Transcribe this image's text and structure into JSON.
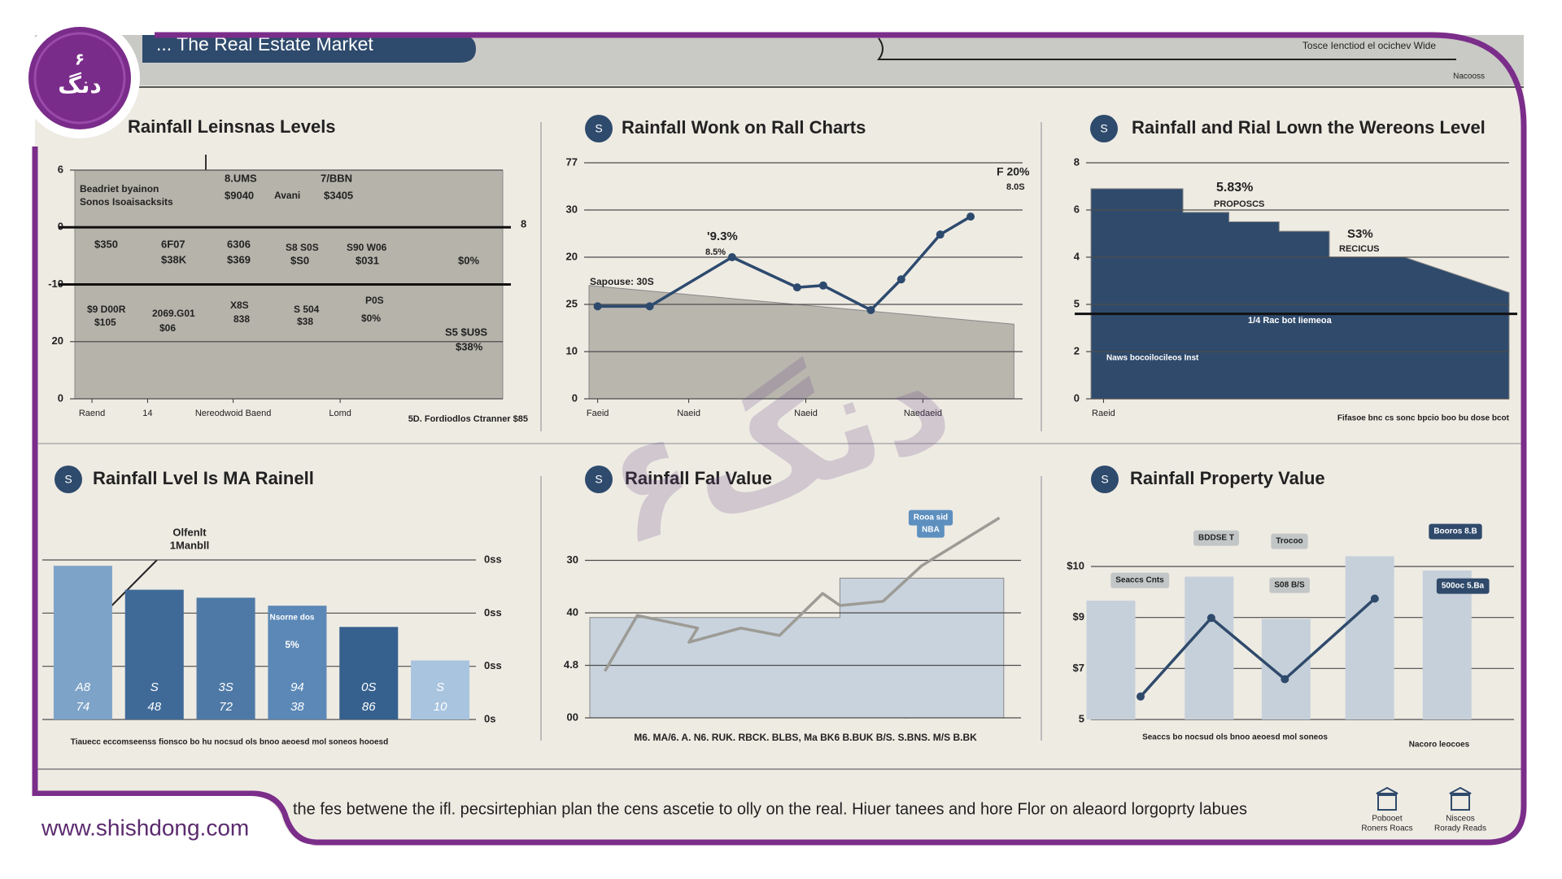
{
  "header": {
    "title": "... The Real Estate Market",
    "right_note": "Tosce Ienctiod el ocichev Wide",
    "right_sub": "Nacooss"
  },
  "brand": {
    "logo_num": "۶",
    "logo_text": "دنگ",
    "url": "www.shishdong.com",
    "watermark": "۶دنگ"
  },
  "footer": {
    "text": "the fes betwene the ifl. pecsirtephian plan the cens ascetie to olly on the real. Hiuer tanees and hore Flor on aleaord lorgoprty labues",
    "icons": [
      [
        "Pobooet",
        "Roners Roacs"
      ],
      [
        "Nisceos",
        "Rorady Reads"
      ]
    ]
  },
  "chart_data": [
    {
      "type": "area",
      "title": "Rainfall Leinsnas Levels",
      "grid": true,
      "ylim": [
        0,
        41
      ],
      "yticks": [
        {
          "value": 40,
          "label": "6"
        },
        {
          "value": 30,
          "label": "0"
        },
        {
          "value": 20,
          "label": "-10"
        },
        {
          "value": 10,
          "label": "20"
        },
        0
      ],
      "reference_lines": [
        30,
        20
      ],
      "xlim": [
        0,
        10
      ],
      "xticks": [
        {
          "value": 0.4,
          "label": "Raend"
        },
        {
          "value": 1.7,
          "label": "14"
        },
        {
          "value": 3.7,
          "label": "Nereodwoid Baend"
        },
        {
          "value": 6.2,
          "label": "Lomd"
        }
      ],
      "series": [
        {
          "color": "#b5b3aa",
          "x": [
            0,
            10
          ],
          "values": [
            40,
            40
          ]
        }
      ],
      "annotations": [
        "Beadriet byainon",
        "Sonos Isoaisacksits",
        "8.UMS",
        "$9040",
        "Avani",
        "7/BBN",
        "$3405",
        "$350",
        "6F07",
        "$38K",
        "6306",
        "$369",
        "S8 S0S",
        "$S0",
        "S90 W06",
        "$031",
        "$0%",
        "$9 D00R",
        "$105",
        "2069.G01",
        "$06",
        "X8S",
        "838",
        "S 504",
        "$38",
        "P0S",
        "$0%",
        "S5 $U9S",
        "$38%",
        "5D. Fordiodlos Ctranner $85",
        "8"
      ]
    },
    {
      "type": "line",
      "title": "Rainfall Wonk on Rall Charts",
      "badge": "S",
      "grid": true,
      "ylim": [
        0,
        50
      ],
      "yticks": [
        {
          "value": 50,
          "label": "77"
        },
        {
          "value": 40,
          "label": "30"
        },
        {
          "value": 30,
          "label": "20"
        },
        {
          "value": 20,
          "label": "25"
        },
        10,
        0
      ],
      "xlim": [
        0,
        10
      ],
      "xticks": [
        {
          "value": 0.2,
          "label": "Faeid"
        },
        {
          "value": 2.3,
          "label": "Naeid"
        },
        {
          "value": 5,
          "label": "Naeid"
        },
        {
          "value": 7.7,
          "label": "Naedaeid"
        }
      ],
      "series": [
        {
          "type": "area",
          "color": "#b9b6ae",
          "x": [
            0,
            9.8
          ],
          "values": [
            24,
            15.8
          ]
        },
        {
          "color": "#2d4a6e",
          "markers": true,
          "x": [
            0.2,
            1.4,
            3.3,
            4.8,
            5.4,
            6.5,
            7.2,
            8.1,
            8.8
          ],
          "values": [
            19.6,
            19.6,
            30,
            23.6,
            24,
            18.8,
            25.3,
            34.8,
            38.6
          ]
        }
      ],
      "annotations": [
        "Sapouse: 30S",
        "'9.3%",
        "8.5%",
        "F 20%",
        "8.0S"
      ]
    },
    {
      "type": "area",
      "title": "Rainfall and Rial Lown the Wereons Level",
      "badge": "S",
      "grid": true,
      "ylim": [
        0,
        10
      ],
      "yticks": [
        {
          "value": 10,
          "label": "8"
        },
        {
          "value": 8,
          "label": "6"
        },
        {
          "value": 6,
          "label": "4"
        },
        {
          "value": 4,
          "label": "5"
        },
        2,
        0
      ],
      "reference_lines": [
        3.6
      ],
      "xlim": [
        0,
        10
      ],
      "xticks": [
        {
          "value": 0.3,
          "label": "Raeid"
        }
      ],
      "series": [
        {
          "color": "#2f4a6b",
          "x": [
            0,
            2.2,
            2.2,
            3.3,
            3.3,
            4.5,
            4.5,
            5.7,
            5.7,
            7.5,
            7.5,
            10
          ],
          "values": [
            8.9,
            8.9,
            7.9,
            7.9,
            7.5,
            7.5,
            7.1,
            7.1,
            6,
            6,
            6,
            4.5
          ]
        }
      ],
      "annotations": [
        "5.83%",
        "PROPOSCS",
        "S3%",
        "RECICUS",
        "1/4 Rac bot Iiemeoa",
        "Naws bocoilocileos Inst",
        "Fifasoe bnc cs sonc bpcio boo bu dose bcot"
      ]
    },
    {
      "type": "bar",
      "title": "Rainfall Lvel Is MA Rainell",
      "badge": "S",
      "grid": true,
      "ylim": [
        0,
        30
      ],
      "yticks": [
        {
          "value": 30,
          "label": "0ss"
        },
        {
          "value": 20,
          "label": "0ss"
        },
        {
          "value": 10,
          "label": "0ss"
        },
        {
          "value": 0,
          "label": "0s"
        }
      ],
      "series": [
        {
          "colors": [
            "#7ea3c8",
            "#3f6a98",
            "#4e79a6",
            "#5b88b6",
            "#36608e",
            "#a9c4df"
          ],
          "values": [
            28.9,
            24.4,
            22.9,
            21.4,
            17.4,
            11.1
          ]
        }
      ],
      "bar_labels": [
        [
          "A8",
          "74"
        ],
        [
          "S",
          "48"
        ],
        [
          "3S",
          "72"
        ],
        [
          "94",
          "38"
        ],
        [
          "0S",
          "86"
        ],
        [
          "S",
          "10"
        ]
      ],
      "annotations": [
        "Olfenlt",
        "1Manbll",
        "Nsorne dos",
        "5%",
        "Tiauecc eccomseenss fionsco bo hu nocsud ols bnoo aeoesd mol soneos hooesd"
      ]
    },
    {
      "type": "line",
      "title": "Rainfall Fal Value",
      "badge": "S",
      "grid": true,
      "ylim": [
        0,
        40
      ],
      "yticks": [
        30,
        {
          "value": 20,
          "label": "40"
        },
        {
          "value": 10,
          "label": "4.8"
        },
        {
          "value": 0,
          "label": "00"
        }
      ],
      "xlim": [
        0,
        10
      ],
      "series": [
        {
          "type": "area",
          "color": "#c9d3dd",
          "x": [
            0,
            5.8,
            5.8,
            9.6
          ],
          "values": [
            19.1,
            19.1,
            26.6,
            26.6
          ]
        },
        {
          "color": "#9c9b95",
          "x": [
            0.35,
            1.1,
            2.5,
            2.3,
            3.5,
            4.4,
            5.4,
            5.8,
            6.8,
            7.7,
            9.5
          ],
          "values": [
            8.9,
            19.5,
            17.1,
            14.4,
            17.1,
            15.7,
            23.7,
            21.4,
            22.2,
            29,
            38.1
          ]
        }
      ],
      "annotations": [
        "Rooa sid",
        "NBA",
        "M6. MA/6. A. N6. RUK. RBCK. BLBS, Ma BK6 B.BUK B/S. S.BNS. M/S B.BK"
      ]
    },
    {
      "type": "bar",
      "title": "Rainfall Property Value",
      "badge": "S",
      "grid": true,
      "ylim": [
        0,
        3
      ],
      "yticks": [
        {
          "value": 3,
          "label": "$10"
        },
        {
          "value": 2,
          "label": "$9"
        },
        {
          "value": 1,
          "label": "$7"
        },
        {
          "value": 0,
          "label": "5"
        }
      ],
      "xlim": [
        0,
        10
      ],
      "series": [
        {
          "color": "#c6d0da",
          "x": [
            0.36,
            2.71,
            4.55,
            6.55,
            8.4
          ],
          "values": [
            2.33,
            2.8,
            1.97,
            3.2,
            2.92
          ]
        },
        {
          "type": "line",
          "color": "#2f4a6b",
          "markers": true,
          "x": [
            1.07,
            2.76,
            4.52,
            6.67
          ],
          "values": [
            0.45,
            1.99,
            0.79,
            2.37
          ]
        }
      ],
      "annotations": [
        "Seaccs Cnts",
        "BDDSE T",
        "Trocoo",
        "S08 B/S",
        "Booros 8.B",
        "500oc 5.Ba",
        "Seaccs bo nocsud ols bnoo aeoesd mol soneos",
        "Nacoro leocoes"
      ]
    }
  ]
}
